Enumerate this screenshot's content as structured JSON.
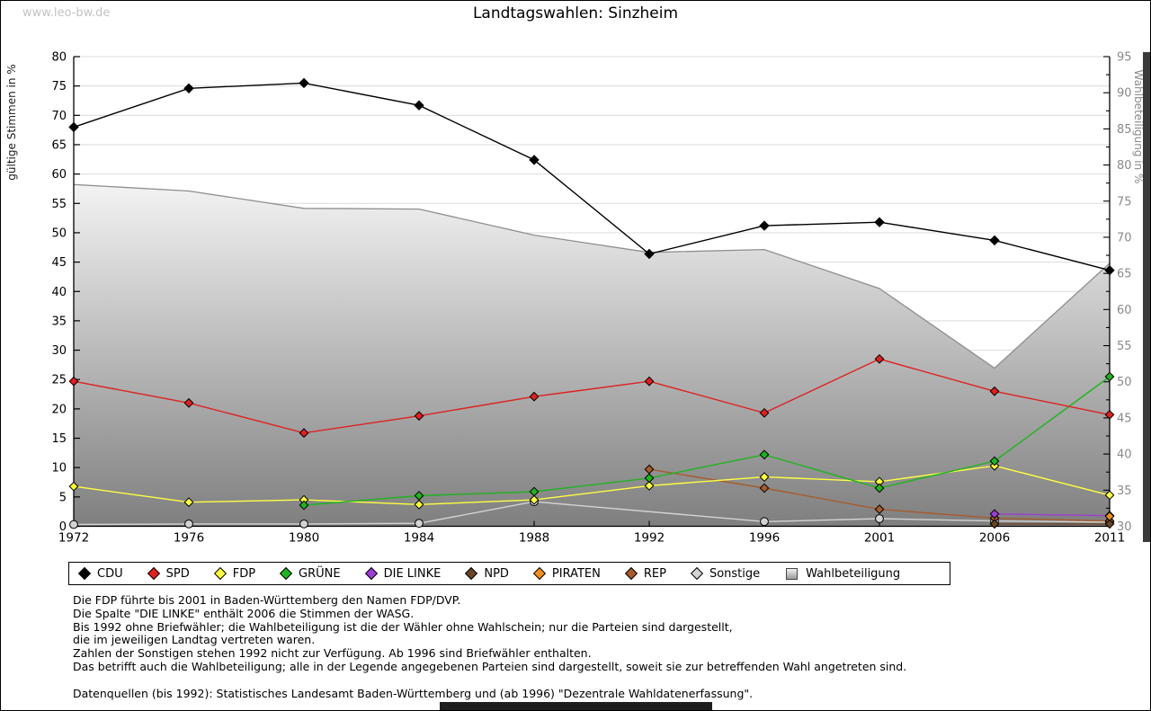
{
  "header": {
    "watermark": "www.leo-bw.de",
    "title": "Landtagswahlen: Sinzheim"
  },
  "chart_data": {
    "type": "line",
    "title": "Landtagswahlen: Sinzheim",
    "categories": [
      "1972",
      "1976",
      "1980",
      "1984",
      "1988",
      "1992",
      "1996",
      "2001",
      "2006",
      "2011"
    ],
    "left_axis": {
      "label": "gültige Stimmen in %",
      "min": 0,
      "max": 80,
      "tick_step": 5
    },
    "right_axis": {
      "label": "Wahlbeteiligung in %",
      "min": 30,
      "max": 95,
      "tick_step": 5,
      "minor_step": 2.5
    },
    "grid": true,
    "legend_position": "bottom",
    "series": [
      {
        "name": "CDU",
        "axis": "left",
        "color": "#000000",
        "marker": "diamond",
        "values": [
          68.0,
          74.6,
          75.5,
          71.7,
          62.4,
          46.4,
          51.2,
          51.8,
          48.7,
          43.6
        ]
      },
      {
        "name": "SPD",
        "axis": "left",
        "color": "#e02020",
        "marker": "diamond",
        "values": [
          24.7,
          21.0,
          15.9,
          18.8,
          22.1,
          24.7,
          19.3,
          28.5,
          23.0,
          19.0
        ]
      },
      {
        "name": "FDP",
        "axis": "left",
        "color": "#ffff42",
        "marker": "diamond",
        "values": [
          6.8,
          4.1,
          4.5,
          3.7,
          4.5,
          6.9,
          8.4,
          7.6,
          10.3,
          5.3
        ]
      },
      {
        "name": "GRÜNE",
        "axis": "left",
        "color": "#1fb41f",
        "marker": "diamond",
        "values": [
          null,
          null,
          3.6,
          5.2,
          5.9,
          8.2,
          12.2,
          6.5,
          11.1,
          25.5
        ]
      },
      {
        "name": "DIE LINKE",
        "axis": "left",
        "color": "#9d3ed5",
        "marker": "diamond",
        "values": [
          null,
          null,
          null,
          null,
          null,
          null,
          null,
          null,
          2.1,
          1.8
        ]
      },
      {
        "name": "NPD",
        "axis": "left",
        "color": "#6b4423",
        "marker": "diamond",
        "values": [
          null,
          null,
          null,
          null,
          null,
          null,
          null,
          null,
          0.4,
          0.4
        ]
      },
      {
        "name": "PIRATEN",
        "axis": "left",
        "color": "#ef9021",
        "marker": "diamond",
        "values": [
          null,
          null,
          null,
          null,
          null,
          null,
          null,
          null,
          null,
          1.7
        ]
      },
      {
        "name": "REP",
        "axis": "left",
        "color": "#a85b2a",
        "marker": "diamond",
        "values": [
          null,
          null,
          null,
          null,
          null,
          9.7,
          6.5,
          2.9,
          1.4,
          0.9
        ]
      },
      {
        "name": "Sonstige",
        "axis": "left",
        "color": "#d3d3d3",
        "marker": "circle",
        "values": [
          0.3,
          0.4,
          0.4,
          0.5,
          4.2,
          null,
          0.8,
          1.3,
          0.9,
          0.7
        ]
      }
    ],
    "area_series": {
      "name": "Wahlbeteiligung",
      "axis": "right",
      "values": [
        77.3,
        76.4,
        74.0,
        73.9,
        70.3,
        67.9,
        68.3,
        62.9,
        51.9,
        66.4
      ],
      "fill_top": "#f4f4f4",
      "fill_bottom": "#7f7f7f",
      "outline": "#8f8f8f"
    }
  },
  "footnotes": [
    "Die FDP führte bis 2001 in Baden-Württemberg den Namen FDP/DVP.",
    "Die Spalte \"DIE LINKE\" enthält 2006 die Stimmen der WASG.",
    "Bis 1992 ohne Briefwähler; die Wahlbeteiligung ist die der Wähler ohne Wahlschein; nur die Parteien sind dargestellt,",
    "die im jeweiligen Landtag vertreten waren.",
    "Zahlen der Sonstigen stehen 1992 nicht zur Verfügung. Ab 1996 sind Briefwähler enthalten.",
    "Das betrifft auch die Wahlbeteiligung; alle in der Legende angegebenen Parteien sind dargestellt, soweit sie zur betreffenden Wahl angetreten sind.",
    "",
    "Datenquellen (bis 1992): Statistisches Landesamt Baden-Württemberg und (ab 1996) \"Dezentrale Wahldatenerfassung\"."
  ],
  "colors": {
    "grid": "#dcdcdc",
    "axis": "#000000",
    "right_axis_text": "#8a8a8a",
    "watermark": "#c3c3c3"
  }
}
